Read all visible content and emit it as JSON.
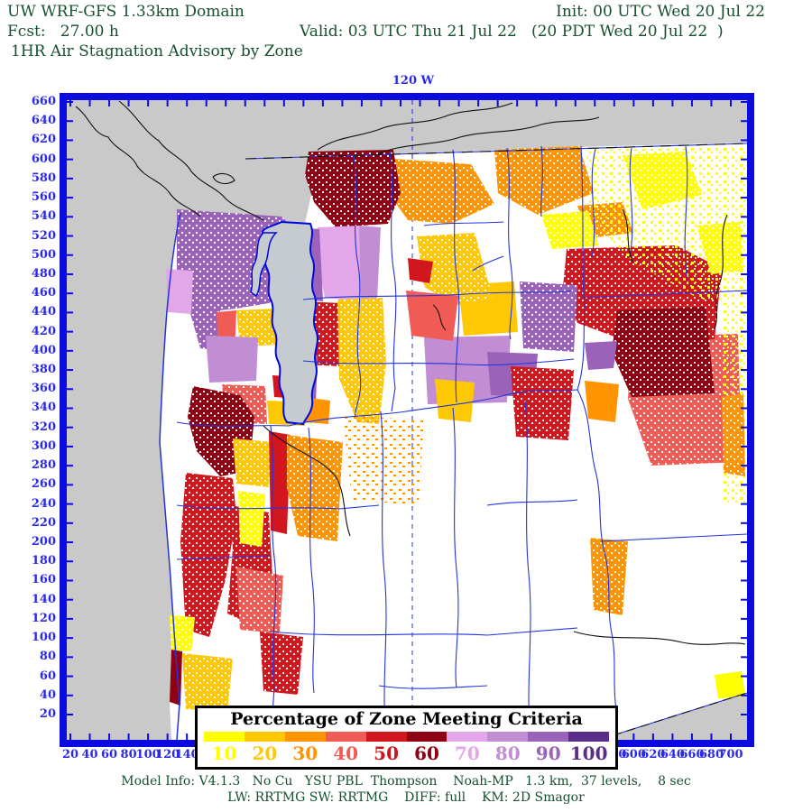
{
  "header": {
    "line1_left": "UW WRF-GFS 1.33km Domain",
    "line1_right": "Init: 00 UTC Wed 20 Jul 22",
    "line2_left": "Fcst:   27.00 h",
    "line2_right": "Valid: 03 UTC Thu 21 Jul 22   (20 PDT Wed 20 Jul 22  )",
    "line3": "1HR Air Stagnation Advisory by Zone"
  },
  "map": {
    "longitude_label": "120 W",
    "x_axis": {
      "min": 20,
      "max": 700,
      "step": 20
    },
    "y_axis": {
      "min": 20,
      "max": 660,
      "step": 20
    }
  },
  "legend": {
    "title": "Percentage of Zone Meeting Criteria",
    "items": [
      {
        "label": "10",
        "color": "#FFFF00"
      },
      {
        "label": "20",
        "color": "#FFC805"
      },
      {
        "label": "30",
        "color": "#FF9400"
      },
      {
        "label": "40",
        "color": "#F15B55"
      },
      {
        "label": "50",
        "color": "#D2161E"
      },
      {
        "label": "60",
        "color": "#8F0012"
      },
      {
        "label": "70",
        "color": "#E3A6E9"
      },
      {
        "label": "80",
        "color": "#C18DD3"
      },
      {
        "label": "90",
        "color": "#9A62B8"
      },
      {
        "label": "100",
        "color": "#5A2C8C"
      }
    ]
  },
  "footer": {
    "line1": "Model Info: V4.1.3   No Cu   YSU PBL  Thompson    Noah-MP   1.3 km,  37 levels,    8 sec",
    "line2": "LW: RRTMG SW: RRTMG    DIFF: full    KM: 2D Smagor"
  },
  "colors": {
    "frame": "#0B0BE0",
    "axisText": "#2A2AE8",
    "boundary": "#2334DC",
    "outside": "#C9C9C9",
    "water": "#C6CBD0",
    "dash": "#4453EA",
    "headerText": "#17502F"
  }
}
